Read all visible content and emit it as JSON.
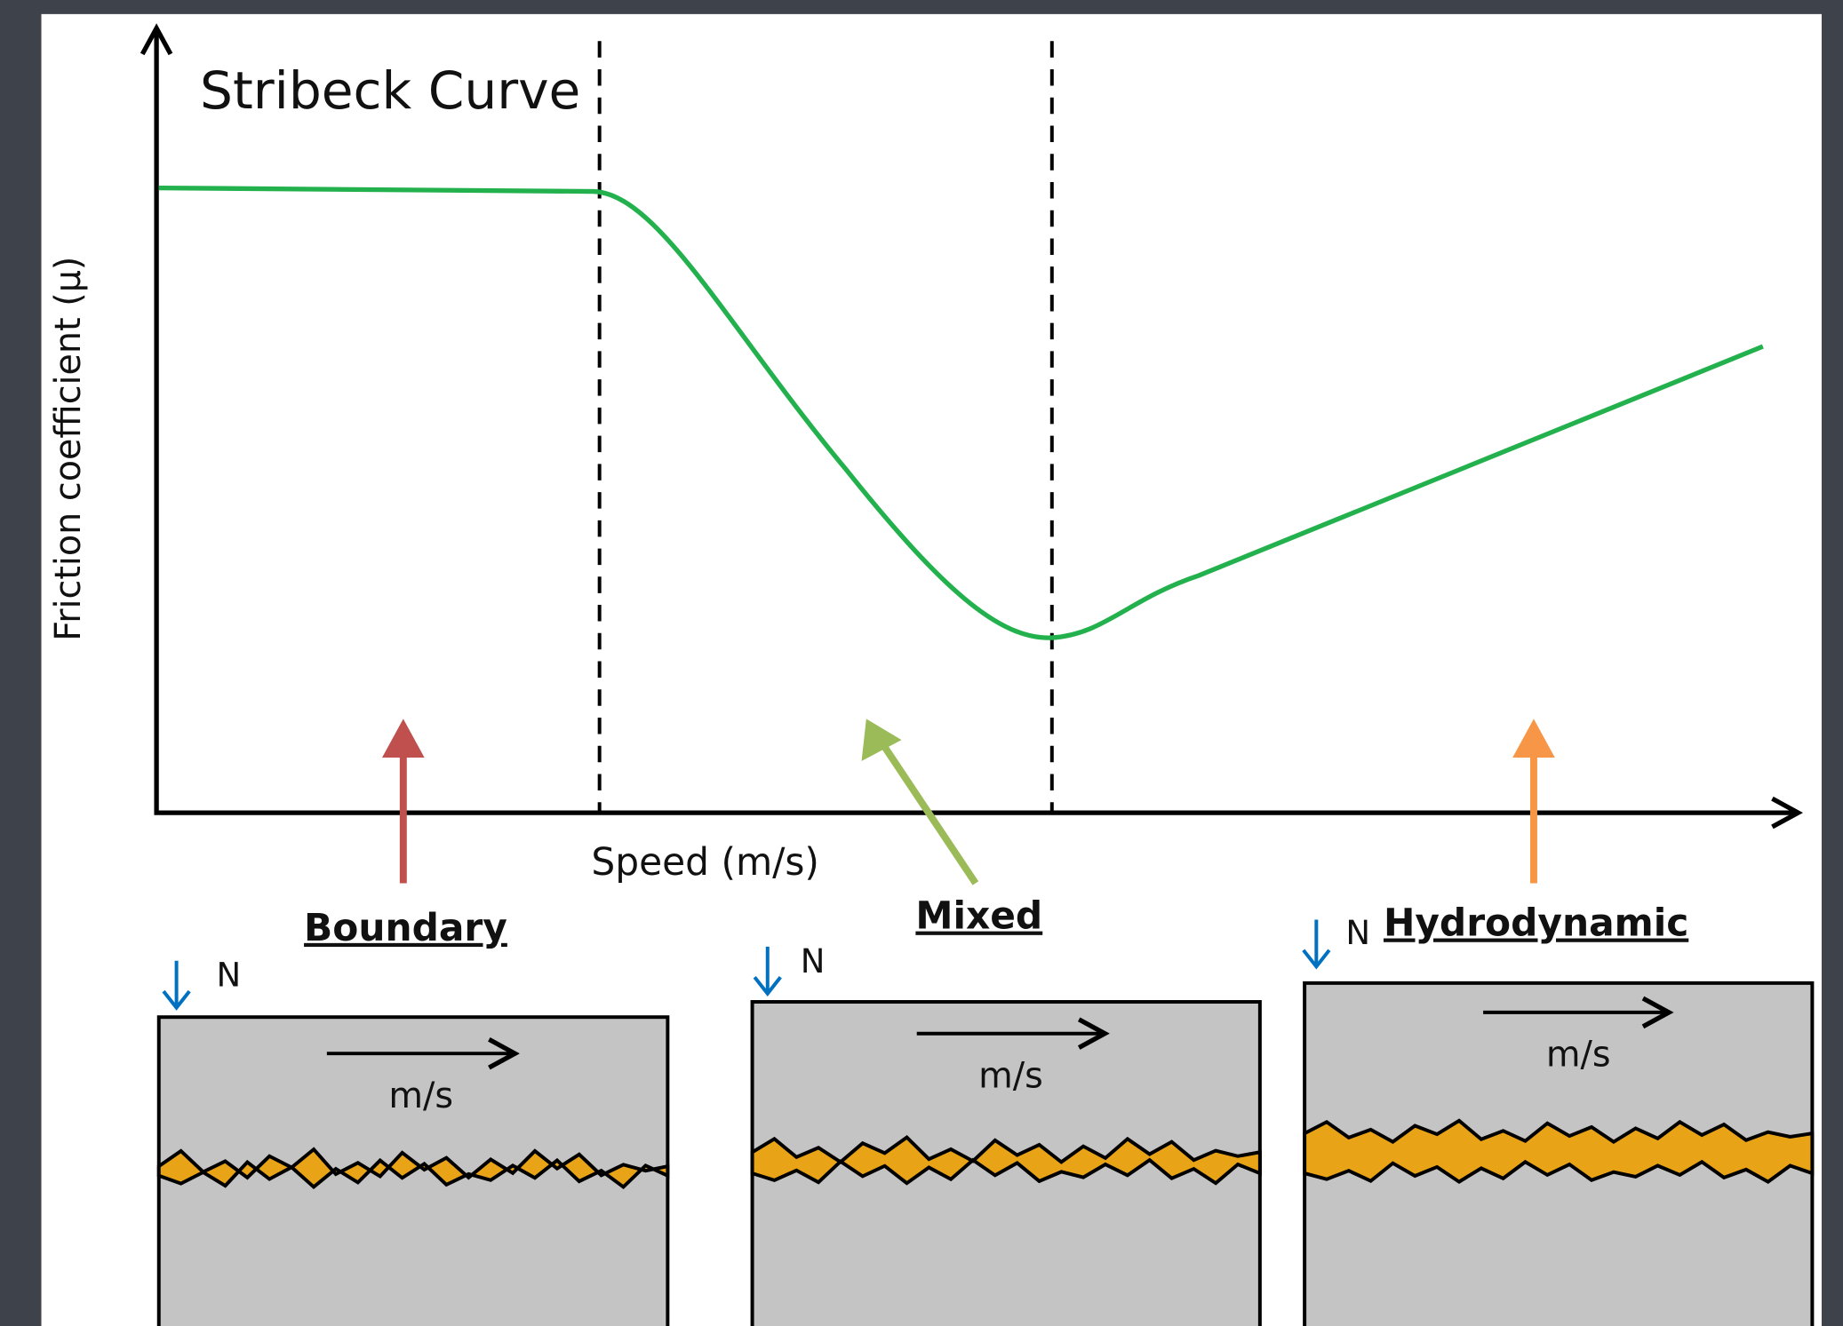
{
  "title": "Stribeck Curve",
  "axes": {
    "y_label": "Friction coefficient (μ)",
    "x_label": "Speed (m/s)"
  },
  "regimes": [
    {
      "label": "Boundary",
      "force_label": "N",
      "speed_label": "m/s"
    },
    {
      "label": "Mixed",
      "force_label": "N",
      "speed_label": "m/s"
    },
    {
      "label": "Hydrodynamic",
      "force_label": "N",
      "speed_label": "m/s"
    }
  ]
}
